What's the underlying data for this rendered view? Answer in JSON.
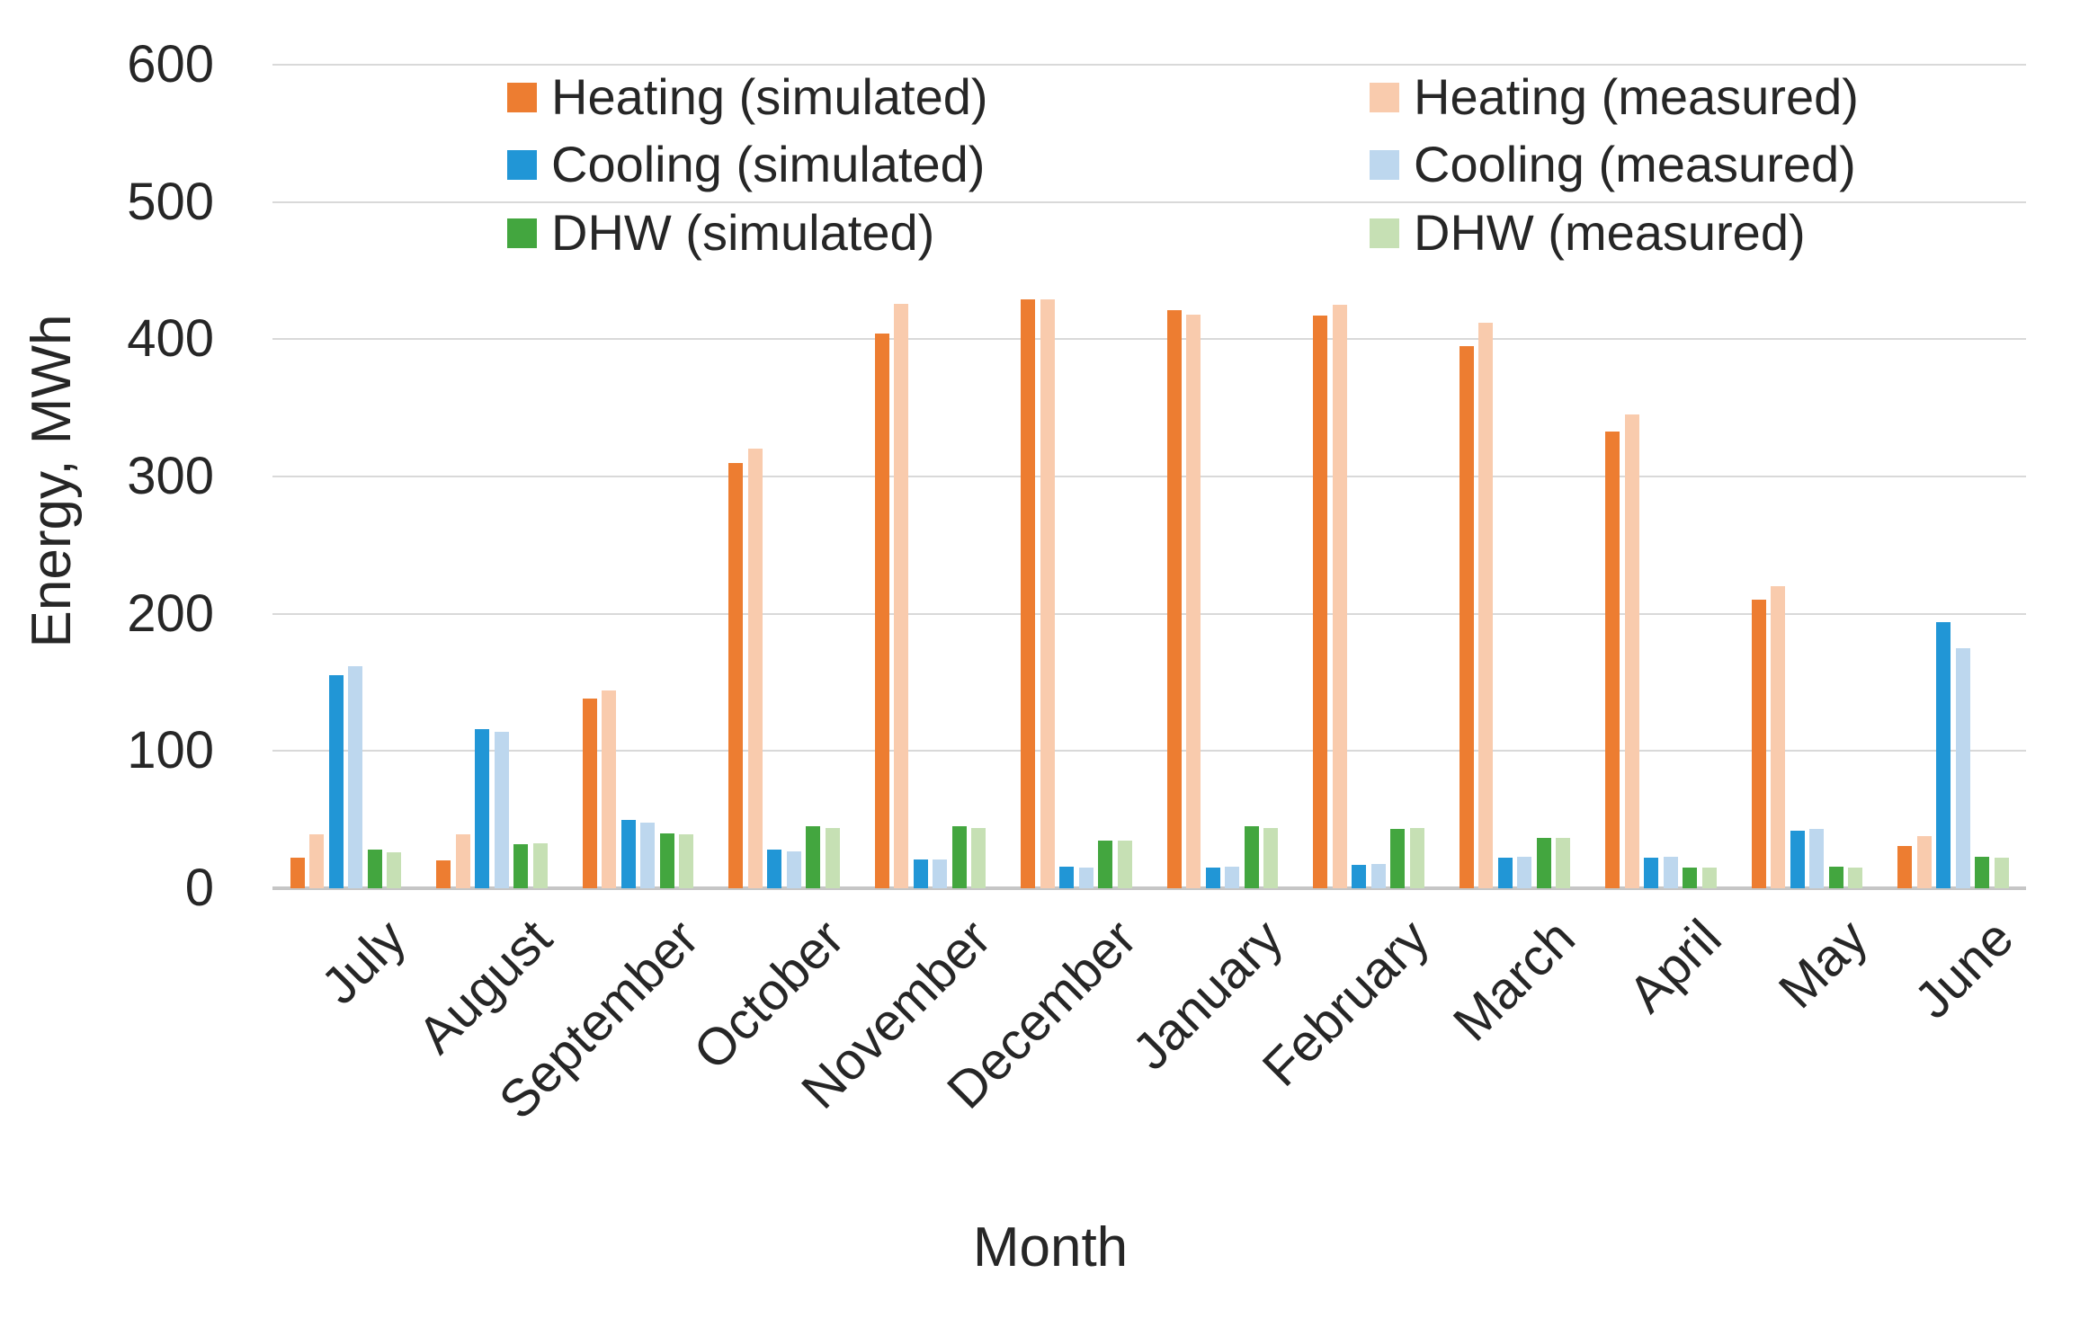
{
  "chart_data": {
    "type": "bar",
    "title": "",
    "xlabel": "Month",
    "ylabel": "Energy, MWh",
    "ylim": [
      0,
      600
    ],
    "ytick_step": 100,
    "grid": true,
    "legend_position": "top-two-columns",
    "categories": [
      "July",
      "August",
      "September",
      "October",
      "November",
      "December",
      "January",
      "February",
      "March",
      "April",
      "May",
      "June"
    ],
    "series": [
      {
        "name": "Heating (simulated)",
        "color": "#ED7D31",
        "values": [
          22,
          20,
          138,
          310,
          404,
          429,
          421,
          417,
          395,
          333,
          210,
          31
        ]
      },
      {
        "name": "Heating (measured)",
        "color": "#F9CBAD",
        "values": [
          39,
          39,
          144,
          320,
          426,
          429,
          418,
          425,
          412,
          345,
          220,
          38
        ]
      },
      {
        "name": "Cooling (simulated)",
        "color": "#2196D6",
        "values": [
          155,
          116,
          50,
          28,
          21,
          16,
          15,
          17,
          22,
          22,
          42,
          194
        ]
      },
      {
        "name": "Cooling (measured)",
        "color": "#BDD7EE",
        "values": [
          162,
          114,
          48,
          27,
          21,
          15,
          16,
          18,
          23,
          23,
          43,
          175
        ]
      },
      {
        "name": "DHW (simulated)",
        "color": "#43A63F",
        "values": [
          28,
          32,
          40,
          45,
          45,
          35,
          45,
          43,
          37,
          15,
          16,
          23
        ]
      },
      {
        "name": "DHW (measured)",
        "color": "#C6E0B4",
        "values": [
          26,
          33,
          39,
          44,
          44,
          35,
          44,
          44,
          37,
          15,
          15,
          22
        ]
      }
    ],
    "y_tick_labels": [
      "0",
      "100",
      "200",
      "300",
      "400",
      "500",
      "600"
    ]
  },
  "legend": {
    "columns": [
      [
        "Heating (simulated)",
        "Cooling (simulated)",
        "DHW (simulated)"
      ],
      [
        "Heating (measured)",
        "Cooling (measured)",
        "DHW (measured)"
      ]
    ]
  },
  "colors": {
    "gridline": "#D9D9D9",
    "axis_line": "#C6C6C6",
    "text": "#262626"
  }
}
